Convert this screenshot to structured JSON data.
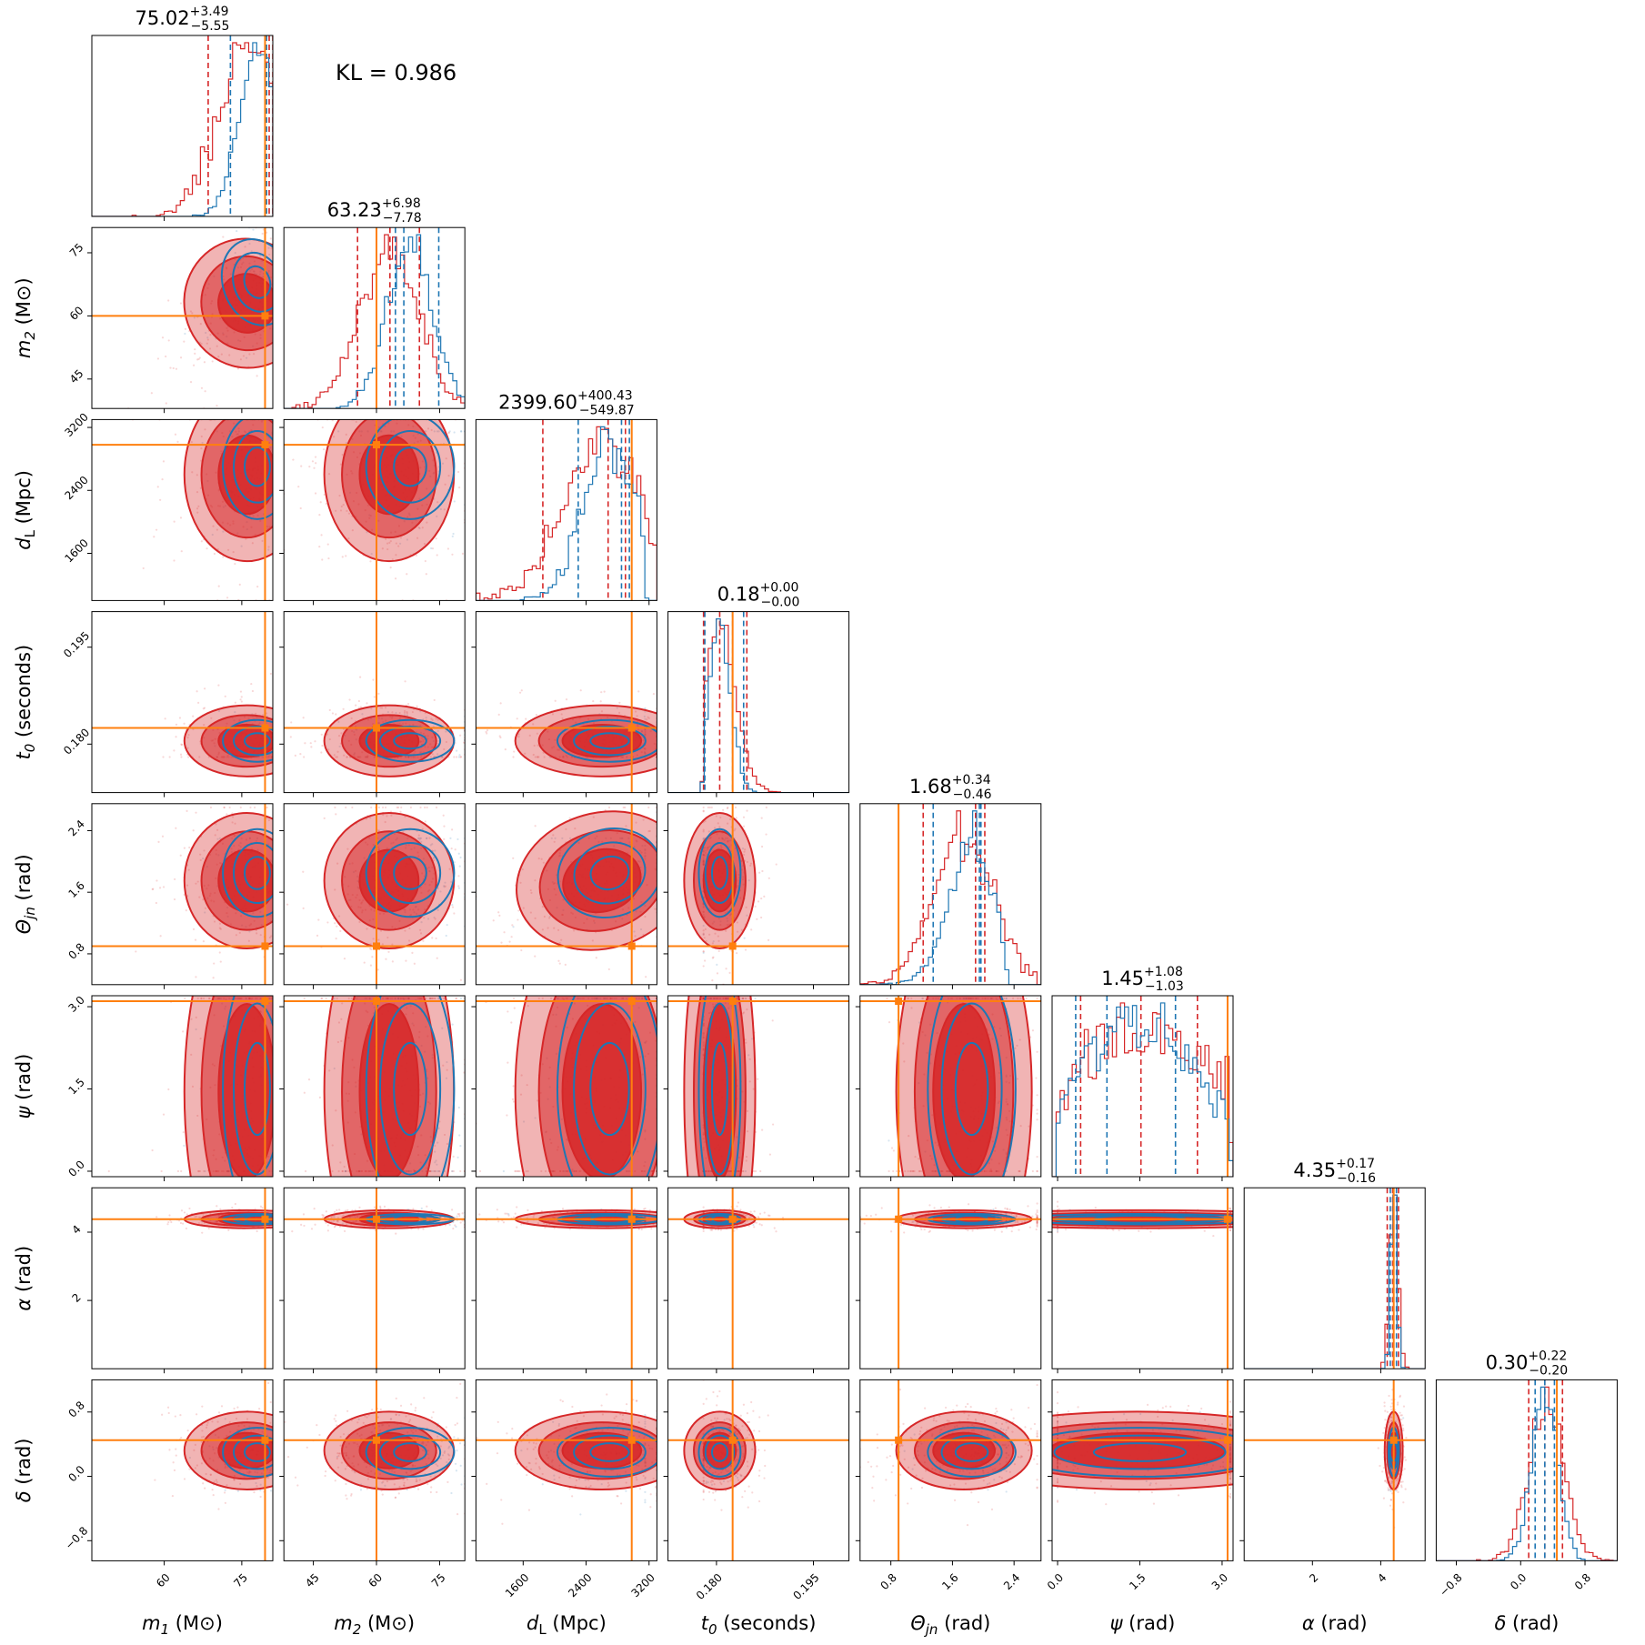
{
  "chart_data": {
    "type": "corner",
    "annotation": "KL = 0.986",
    "series_colors": {
      "red": "#d62728",
      "blue": "#1f77b4",
      "truth": "#ff7f0e"
    },
    "parameters": [
      {
        "key": "m1",
        "label": "m1 (M⊙)",
        "sym": "m",
        "sub": "1",
        "unit": "M⊙",
        "range": [
          46,
          81
        ],
        "ticks": [
          60,
          75
        ],
        "tick_labels": [
          "60",
          "75"
        ],
        "truth": 79.5,
        "median": 75.02,
        "plus": "+3.49",
        "minus": "−5.55",
        "red": {
          "mu": 76,
          "sd": 5.5,
          "lo": 40,
          "hi": 81.5
        },
        "blue": {
          "mu": 78,
          "sd": 3.5,
          "lo": 60,
          "hi": 81.5
        },
        "red_lines": [
          68.5,
          80.3,
          81.0
        ],
        "blue_lines": [
          72.8,
          79.8,
          81.2
        ]
      },
      {
        "key": "m2",
        "label": "m2 (M⊙)",
        "sym": "m",
        "sub": "2",
        "unit": "M⊙",
        "range": [
          38,
          81
        ],
        "ticks": [
          45,
          60,
          75
        ],
        "tick_labels": [
          "45",
          "60",
          "75"
        ],
        "truth": 60,
        "median": 63.23,
        "plus": "+6.98",
        "minus": "−7.78",
        "red": {
          "mu": 63,
          "sd": 7,
          "lo": 38,
          "hi": 81
        },
        "blue": {
          "mu": 68,
          "sd": 5.5,
          "lo": 50,
          "hi": 81
        },
        "red_lines": [
          55.5,
          63.2,
          70.2
        ],
        "blue_lines": [
          64.5,
          66.5,
          74.8
        ]
      },
      {
        "key": "dL",
        "label": "dL (Mpc)",
        "sym": "d",
        "sub": "L",
        "unit": "Mpc",
        "range": [
          1000,
          3300
        ],
        "ticks": [
          1600,
          2400,
          3200
        ],
        "tick_labels": [
          "1600",
          "2400",
          "3200"
        ],
        "truth": 2980,
        "median": 2399.6,
        "plus": "+400.43",
        "minus": "−549.87",
        "red": {
          "mu": 2600,
          "sd": 500,
          "lo": 1000,
          "hi": 3300
        },
        "blue": {
          "mu": 2700,
          "sd": 350,
          "lo": 1300,
          "hi": 3150
        },
        "red_lines": [
          1850,
          2680,
          2900
        ],
        "blue_lines": [
          2300,
          2850,
          2950
        ]
      },
      {
        "key": "t0",
        "label": "t0 (seconds)",
        "sym": "t",
        "sub": "0",
        "unit": "seconds",
        "range": [
          0.1725,
          0.2005
        ],
        "ticks": [
          0.18,
          0.195
        ],
        "tick_labels": [
          "0.180",
          "0.195"
        ],
        "truth": 0.1825,
        "median": 0.18,
        "plus": "+0.00",
        "minus": "−0.00",
        "red": {
          "mu": 0.1805,
          "sd": 0.0025,
          "lo": 0.178,
          "hi": 0.2005
        },
        "blue": {
          "mu": 0.1805,
          "sd": 0.0017,
          "lo": 0.178,
          "hi": 0.186
        },
        "red_lines": [
          0.178,
          0.1805,
          0.1847
        ],
        "blue_lines": [
          0.1782,
          0.1825,
          0.1842
        ]
      },
      {
        "key": "theta",
        "label": "Θjn (rad)",
        "sym": "Θ",
        "sub": "jn",
        "unit": "rad",
        "range": [
          0.4,
          2.75
        ],
        "ticks": [
          0.8,
          1.6,
          2.4
        ],
        "tick_labels": [
          "0.8",
          "1.6",
          "2.4"
        ],
        "truth": 0.9,
        "median": 1.68,
        "plus": "+0.34",
        "minus": "−0.46",
        "red": {
          "mu": 1.75,
          "sd": 0.4,
          "lo": 0.4,
          "hi": 2.7
        },
        "blue": {
          "mu": 1.85,
          "sd": 0.3,
          "lo": 0.5,
          "hi": 2.3
        },
        "red_lines": [
          1.22,
          1.9,
          2.02
        ],
        "blue_lines": [
          1.35,
          1.95,
          1.97
        ]
      },
      {
        "key": "psi",
        "label": "ψ (rad)",
        "sym": "ψ",
        "sub": "",
        "unit": "rad",
        "range": [
          -0.1,
          3.2
        ],
        "ticks": [
          0.0,
          1.5,
          3.0
        ],
        "tick_labels": [
          "0.0",
          "1.5",
          "3.0"
        ],
        "truth": 3.1,
        "median": 1.45,
        "plus": "+1.08",
        "minus": "−1.03",
        "red": {
          "mu": 1.45,
          "sd": 1.6,
          "lo": 0.0,
          "hi": 3.15
        },
        "blue": {
          "mu": 1.5,
          "sd": 1.2,
          "lo": 0.0,
          "hi": 3.15
        },
        "red_lines": [
          0.42,
          1.52,
          2.55
        ],
        "blue_lines": [
          0.33,
          0.9,
          2.15
        ]
      },
      {
        "key": "alpha",
        "label": "α (rad)",
        "sym": "α",
        "sub": "",
        "unit": "rad",
        "range": [
          0,
          5.3
        ],
        "ticks": [
          2,
          4
        ],
        "tick_labels": [
          "2",
          "4"
        ],
        "truth": 4.38,
        "median": 4.35,
        "plus": "+0.17",
        "minus": "−0.16",
        "red": {
          "mu": 4.38,
          "sd": 0.12,
          "lo": 3.8,
          "hi": 5.0
        },
        "blue": {
          "mu": 4.38,
          "sd": 0.08,
          "lo": 4.0,
          "hi": 4.8
        },
        "red_lines": [
          4.19,
          4.35,
          4.52
        ],
        "blue_lines": [
          4.28,
          4.38,
          4.46
        ]
      },
      {
        "key": "delta",
        "label": "δ (rad)",
        "sym": "δ",
        "sub": "",
        "unit": "rad",
        "range": [
          -1.05,
          1.2
        ],
        "ticks": [
          -0.8,
          0.0,
          0.8
        ],
        "tick_labels": [
          "−0.8",
          "0.0",
          "0.8"
        ],
        "truth": 0.45,
        "median": 0.3,
        "plus": "+0.22",
        "minus": "−0.20",
        "red": {
          "mu": 0.32,
          "sd": 0.22,
          "lo": -1.0,
          "hi": 1.2
        },
        "blue": {
          "mu": 0.3,
          "sd": 0.16,
          "lo": -0.6,
          "hi": 0.8
        },
        "red_lines": [
          0.1,
          0.3,
          0.52
        ],
        "blue_lines": [
          0.18,
          0.3,
          0.42
        ]
      }
    ]
  }
}
